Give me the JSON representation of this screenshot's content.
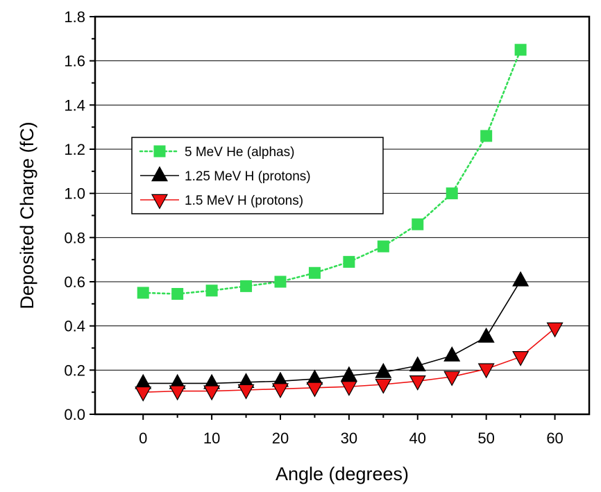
{
  "chart_data": {
    "type": "line",
    "title": "",
    "xlabel": "Angle (degrees)",
    "ylabel": "Deposited Charge (fC)",
    "xlim": [
      -7,
      65
    ],
    "ylim": [
      0.0,
      1.8
    ],
    "x_ticks": [
      0,
      10,
      20,
      30,
      40,
      50,
      60
    ],
    "x_tick_labels": [
      "0",
      "10",
      "20",
      "30",
      "40",
      "50",
      "60"
    ],
    "y_ticks": [
      0.0,
      0.2,
      0.4,
      0.6,
      0.8,
      1.0,
      1.2,
      1.4,
      1.6,
      1.8
    ],
    "y_tick_labels": [
      "0.0",
      "0.2",
      "0.4",
      "0.6",
      "0.8",
      "1.0",
      "1.2",
      "1.4",
      "1.6",
      "1.8"
    ],
    "grid": "horizontal",
    "legend_position": "center-left",
    "series": [
      {
        "name": "5 MeV He (alphas)",
        "color": "#33dd55",
        "marker": "square",
        "line_style": "dotted",
        "x": [
          0,
          5,
          10,
          15,
          20,
          25,
          30,
          35,
          40,
          45,
          50,
          55
        ],
        "y": [
          0.55,
          0.545,
          0.56,
          0.58,
          0.6,
          0.64,
          0.69,
          0.76,
          0.86,
          1.0,
          1.26,
          1.65
        ]
      },
      {
        "name": "1.25 MeV H (protons)",
        "color": "#000000",
        "marker": "triangle-up",
        "line_style": "solid",
        "x": [
          0,
          5,
          10,
          15,
          20,
          25,
          30,
          35,
          40,
          45,
          50,
          55
        ],
        "y": [
          0.14,
          0.14,
          0.14,
          0.145,
          0.15,
          0.16,
          0.175,
          0.19,
          0.22,
          0.265,
          0.35,
          0.605
        ]
      },
      {
        "name": "1.5 MeV H (protons)",
        "color": "#ee1111",
        "marker": "triangle-down",
        "line_style": "solid",
        "x": [
          0,
          5,
          10,
          15,
          20,
          25,
          30,
          35,
          40,
          45,
          50,
          55,
          60
        ],
        "y": [
          0.1,
          0.105,
          0.105,
          0.11,
          0.115,
          0.12,
          0.125,
          0.135,
          0.15,
          0.17,
          0.205,
          0.26,
          0.39
        ]
      }
    ]
  }
}
